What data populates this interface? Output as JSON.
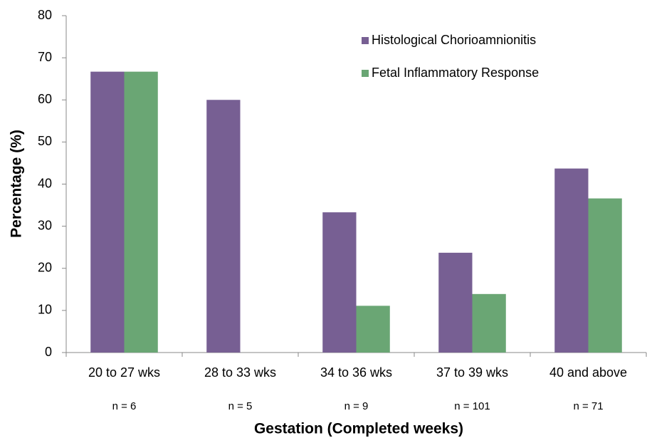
{
  "chart_data": {
    "type": "bar",
    "y_label": "Percentage (%)",
    "x_label": "Gestation (Completed weeks)",
    "categories": [
      "20 to 27 wks",
      "28 to 33 wks",
      "34 to 36 wks",
      "37 to 39 wks",
      "40 and above"
    ],
    "annotations": [
      "n = 6",
      "n = 5",
      "n = 9",
      "n = 101",
      "n = 71"
    ],
    "series": [
      {
        "name": "Histological Chorioamnionitis",
        "color": "#775f93",
        "values": [
          66.7,
          60,
          33.3,
          23.7,
          43.7
        ]
      },
      {
        "name": "Fetal Inflammatory Response",
        "color": "#6aa674",
        "values": [
          66.7,
          0,
          11.1,
          13.9,
          36.6
        ]
      }
    ],
    "ylim": [
      0,
      80
    ],
    "yticks": [
      0,
      10,
      20,
      30,
      40,
      50,
      60,
      70,
      80
    ],
    "grid": false,
    "legend": "upper right"
  }
}
